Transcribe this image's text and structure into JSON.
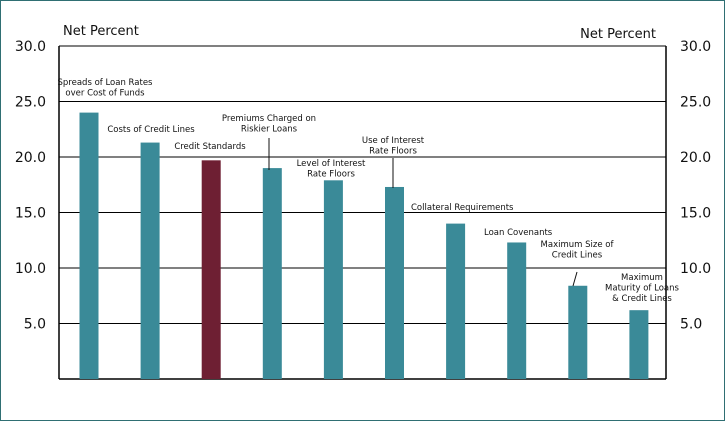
{
  "chart_data": {
    "type": "bar",
    "ylabel_left": "Net Percent",
    "ylabel_right": "Net Percent",
    "ylim": [
      0,
      30
    ],
    "yticks": [
      "5.0",
      "10.0",
      "15.0",
      "20.0",
      "25.0",
      "30.0"
    ],
    "grid": true,
    "categories": [
      "Spreads of Loan Rates over Cost of Funds",
      "Costs of Credit Lines",
      "Credit Standards",
      "Premiums Charged on Riskier Loans",
      "Level of Interest Rate Floors",
      "Use of Interest Rate Floors",
      "Collateral Requirements",
      "Loan Covenants",
      "Maximum Size of Credit Lines",
      "Maximum Maturity of Loans & Credit Lines"
    ],
    "values": [
      24.0,
      21.3,
      19.7,
      19.0,
      17.9,
      17.3,
      14.0,
      12.3,
      8.4,
      6.2
    ],
    "bar_labels": [
      [
        "Spreads of Loan Rates",
        "over Cost of Funds"
      ],
      [
        "Costs of Credit Lines"
      ],
      [
        "Credit Standards"
      ],
      [
        "Premiums Charged on",
        "Riskier Loans"
      ],
      [
        "Level of Interest",
        "Rate Floors"
      ],
      [
        "Use of Interest",
        "Rate Floors"
      ],
      [
        "Collateral Requirements"
      ],
      [
        "Loan Covenants"
      ],
      [
        "Maximum Size of",
        "Credit Lines"
      ],
      [
        "Maximum",
        "Maturity of Loans",
        "& Credit Lines"
      ]
    ],
    "colors": {
      "bar": "#3a8a98",
      "highlight": "#6e1f33",
      "grid": "#000000"
    },
    "highlight_index": 2
  }
}
